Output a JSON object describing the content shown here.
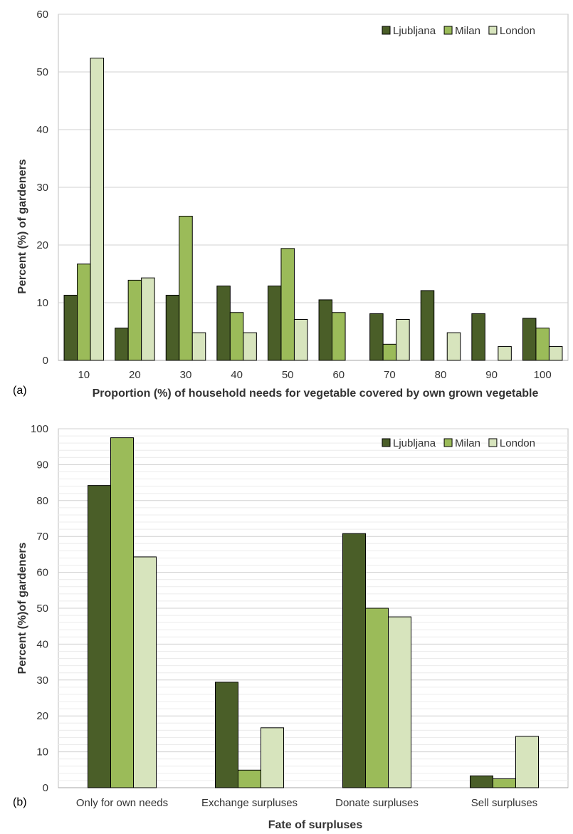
{
  "chart_data": [
    {
      "type": "bar",
      "panel_label": "(a)",
      "categories": [
        "10",
        "20",
        "30",
        "40",
        "50",
        "60",
        "70",
        "80",
        "90",
        "100"
      ],
      "series": [
        {
          "name": "Ljubljana",
          "color": "#4a5e28",
          "values": [
            11.3,
            5.6,
            11.3,
            12.9,
            12.9,
            10.5,
            8.1,
            12.1,
            8.1,
            7.3
          ]
        },
        {
          "name": "Milan",
          "color": "#9bbb59",
          "values": [
            16.7,
            13.9,
            25.0,
            8.3,
            19.4,
            8.3,
            2.8,
            0,
            0,
            5.6
          ]
        },
        {
          "name": "London",
          "color": "#d7e4bd",
          "values": [
            52.4,
            14.3,
            4.8,
            4.8,
            7.1,
            0,
            7.1,
            4.8,
            2.4,
            2.4
          ]
        }
      ],
      "xlabel": "Proportion (%) of household needs for vegetable covered by own grown vegetable",
      "ylabel": "Percent (%) of gardeners",
      "ylim": [
        0,
        60
      ],
      "yticks": [
        "0",
        "10",
        "20",
        "30",
        "40",
        "50",
        "60"
      ],
      "grid": true,
      "legend_position": "top-right"
    },
    {
      "type": "bar",
      "panel_label": "(b)",
      "categories": [
        "Only for own needs",
        "Exchange surpluses",
        "Donate surpluses",
        "Sell surpluses"
      ],
      "series": [
        {
          "name": "Ljubljana",
          "color": "#4a5e28",
          "values": [
            84.2,
            29.4,
            70.8,
            3.3
          ]
        },
        {
          "name": "Milan",
          "color": "#9bbb59",
          "values": [
            97.5,
            4.9,
            50.0,
            2.5
          ]
        },
        {
          "name": "London",
          "color": "#d7e4bd",
          "values": [
            64.3,
            16.7,
            47.6,
            14.3
          ]
        }
      ],
      "xlabel": "Fate of surpluses",
      "ylabel": "Percent (%)of gardeners",
      "ylim": [
        0,
        100
      ],
      "yticks": [
        "0",
        "10",
        "20",
        "30",
        "40",
        "50",
        "60",
        "70",
        "80",
        "90",
        "100"
      ],
      "grid": true,
      "legend_position": "top-right"
    }
  ]
}
